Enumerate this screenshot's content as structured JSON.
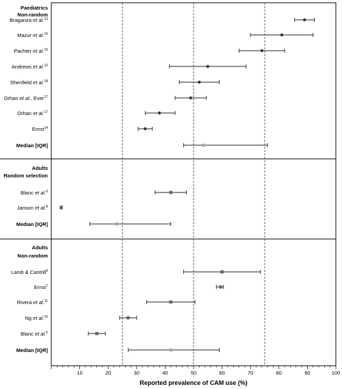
{
  "chart_data": {
    "type": "forest",
    "xlabel": "Reported prevalence of CAM use (%)",
    "xlim": [
      0,
      100
    ],
    "xticks": [
      10,
      20,
      30,
      40,
      50,
      60,
      70,
      80,
      90,
      100
    ],
    "reference_lines": [
      25,
      50,
      75
    ],
    "groups": [
      {
        "heading": [
          "Paediatrics",
          "Non-random"
        ],
        "rows": [
          {
            "author": "Braganza",
            "etal": true,
            "extra": "",
            "ref": "13",
            "estimate": 89,
            "ci_low": 85.5,
            "ci_high": 92.5,
            "kind": "study"
          },
          {
            "author": "Mazur",
            "etal": true,
            "extra": "",
            "ref": "15",
            "estimate": 81,
            "ci_low": 70,
            "ci_high": 92,
            "kind": "study"
          },
          {
            "author": "Pachter",
            "etal": true,
            "extra": "",
            "ref": "16",
            "estimate": 74,
            "ci_low": 66,
            "ci_high": 82,
            "kind": "study"
          },
          {
            "author": "Andrews",
            "etal": true,
            "extra": "",
            "ref": "12",
            "estimate": 55,
            "ci_low": 41.5,
            "ci_high": 68.5,
            "kind": "study"
          },
          {
            "author": "Shenfield",
            "etal": true,
            "extra": "",
            "ref": "18",
            "estimate": 52,
            "ci_low": 45,
            "ci_high": 59,
            "kind": "study"
          },
          {
            "author": "Orhan",
            "etal": true,
            "extra": ", Ever",
            "ref": "17",
            "estimate": 49,
            "ci_low": 43.5,
            "ci_high": 54.5,
            "kind": "study"
          },
          {
            "author": "Orhan",
            "etal": true,
            "extra": "",
            "ref": "17",
            "estimate": 38,
            "ci_low": 33,
            "ci_high": 43.5,
            "kind": "study"
          },
          {
            "author": "Ernst",
            "etal": false,
            "extra": "",
            "ref": "14",
            "estimate": 33,
            "ci_low": 30.5,
            "ci_high": 35.5,
            "kind": "study"
          },
          {
            "author": "Median [IQR]",
            "etal": false,
            "extra": "",
            "ref": "",
            "estimate": 53.5,
            "ci_low": 46.5,
            "ci_high": 76,
            "kind": "median"
          }
        ]
      },
      {
        "heading": [
          "Adults",
          "Random selection"
        ],
        "rows": [
          {
            "author": "Blanc",
            "etal": true,
            "extra": "",
            "ref": "6",
            "estimate": 42,
            "ci_low": 36.5,
            "ci_high": 47.5,
            "kind": "study"
          },
          {
            "author": "Janson",
            "etal": true,
            "extra": "",
            "ref": "8",
            "estimate": 3.5,
            "ci_low": 3.2,
            "ci_high": 3.8,
            "kind": "study"
          },
          {
            "author": "Median [IQR]",
            "etal": false,
            "extra": "",
            "ref": "",
            "estimate": 23,
            "ci_low": 13.5,
            "ci_high": 42,
            "kind": "median"
          }
        ]
      },
      {
        "heading": [
          "Adults",
          "Non-random"
        ],
        "rows": [
          {
            "author": "Lamb & Cantrill",
            "etal": false,
            "extra": "",
            "ref": "9",
            "estimate": 60,
            "ci_low": 46.5,
            "ci_high": 73.5,
            "kind": "study"
          },
          {
            "author": "Ernst",
            "etal": false,
            "extra": "",
            "ref": "7",
            "estimate": 59.5,
            "ci_low": 58,
            "ci_high": 60.5,
            "kind": "study"
          },
          {
            "author": "Rivera",
            "etal": true,
            "extra": "",
            "ref": "11",
            "estimate": 42,
            "ci_low": 33.5,
            "ci_high": 50.5,
            "kind": "study"
          },
          {
            "author": "Ng",
            "etal": true,
            "extra": "",
            "ref": "10",
            "estimate": 27,
            "ci_low": 24,
            "ci_high": 30,
            "kind": "study"
          },
          {
            "author": "Blanc",
            "etal": true,
            "extra": "",
            "ref": "5",
            "estimate": 16,
            "ci_low": 13,
            "ci_high": 19,
            "kind": "study"
          },
          {
            "author": "Median [IQR]",
            "etal": false,
            "extra": "",
            "ref": "",
            "estimate": 42,
            "ci_low": 27,
            "ci_high": 59,
            "kind": "median"
          }
        ]
      }
    ],
    "etal_text": "et al."
  }
}
